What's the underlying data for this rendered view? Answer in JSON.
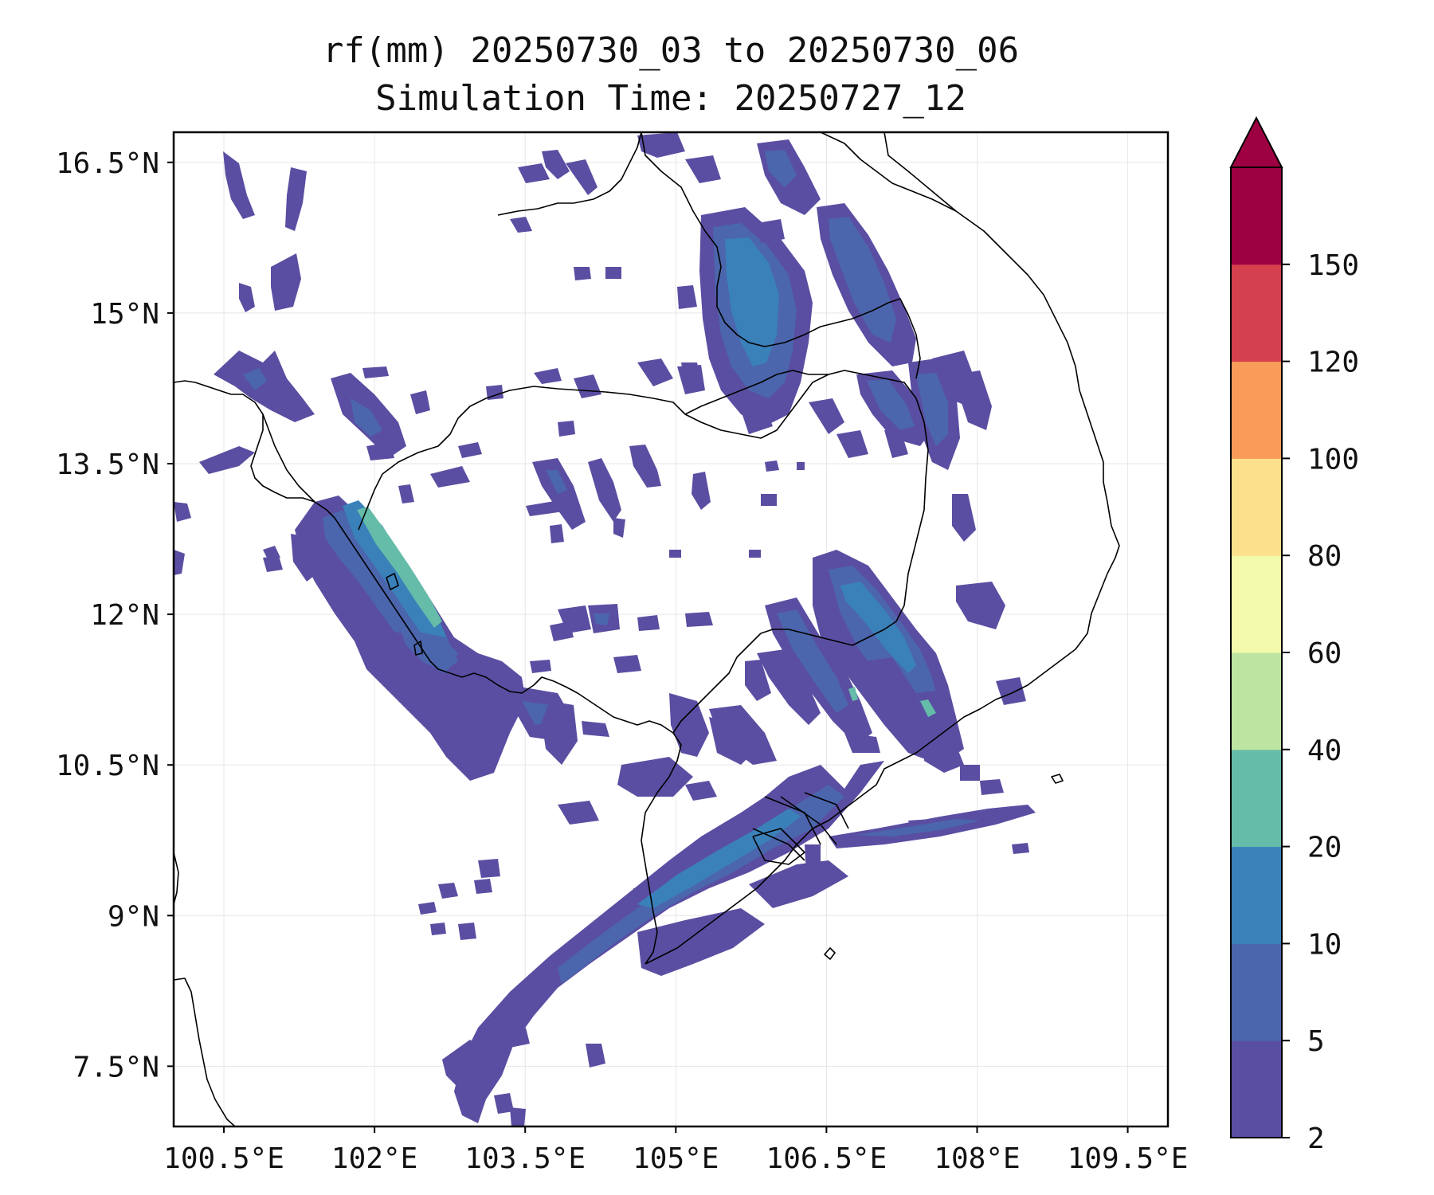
{
  "title": {
    "line1": "rf(mm) 20250730_03 to 20250730_06",
    "line2": "Simulation Time: 20250727_12"
  },
  "map": {
    "variable": "rf(mm)",
    "extent": {
      "lon_min": 100.0,
      "lon_max": 109.9,
      "lat_min": 6.9,
      "lat_max": 16.8
    },
    "gridlines": true,
    "lat_ticks": [
      "16.5°N",
      "15°N",
      "13.5°N",
      "12°N",
      "10.5°N",
      "9°N",
      "7.5°N"
    ],
    "lon_ticks": [
      "100.5°E",
      "102°E",
      "103.5°E",
      "105°E",
      "106.5°E",
      "108°E",
      "109.5°E"
    ],
    "lat_tick_values": [
      16.5,
      15,
      13.5,
      12,
      10.5,
      9,
      7.5
    ],
    "lon_tick_values": [
      100.5,
      102,
      103.5,
      105,
      106.5,
      108,
      109.5
    ],
    "dominant_colors": {
      "2-5": "#5a4ea0",
      "5-10": "#4d68ad",
      "10-20": "#3a80b9",
      "20-40": "#62bba9"
    },
    "high_rain_zones": [
      "coastal band along Gulf of Thailand near 102°E–102.8°E, 11.5°N–13°N",
      "band across southern Vietnam from 103.8°E 8°N to 107.5°E 11.5°N",
      "central highlands near 105.5°E–107.5°E, 14°N–16.5°N"
    ]
  },
  "colorbar": {
    "levels": [
      "2",
      "5",
      "10",
      "20",
      "40",
      "60",
      "80",
      "100",
      "120",
      "150"
    ],
    "colors": [
      "#5a4ea2",
      "#4b66ad",
      "#3a81ba",
      "#64bca9",
      "#bde4a0",
      "#f3faac",
      "#fde08b",
      "#f99c5a",
      "#d5404e",
      "#9e0142"
    ],
    "extend": "max"
  }
}
